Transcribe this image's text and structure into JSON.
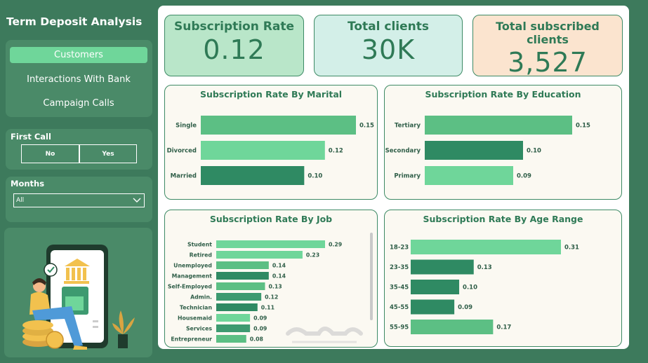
{
  "app": {
    "title": "Term Deposit Analysis"
  },
  "nav": {
    "items": [
      {
        "label": "Customers",
        "active": true
      },
      {
        "label": "Interactions With Bank",
        "active": false
      },
      {
        "label": "Campaign Calls",
        "active": false
      }
    ]
  },
  "filters": {
    "first_call": {
      "label": "First Call",
      "options": [
        "No",
        "Yes"
      ]
    },
    "months": {
      "label": "Months",
      "value": "All"
    }
  },
  "kpis": [
    {
      "title": "Subscription Rate",
      "value": "0.12"
    },
    {
      "title": "Total clients",
      "value": "30K"
    },
    {
      "title": "Total subscribed clients",
      "value": "3,527"
    }
  ],
  "chart_data": [
    {
      "type": "bar",
      "orientation": "horizontal",
      "title": "Subscription Rate By Marital",
      "categories": [
        "Single",
        "Divorced",
        "Married"
      ],
      "values": [
        0.15,
        0.12,
        0.1
      ],
      "labels": [
        "0.15",
        "0.12",
        "0.10"
      ],
      "colors": [
        "#5cbf84",
        "#6fd69a",
        "#2f8a63"
      ]
    },
    {
      "type": "bar",
      "orientation": "horizontal",
      "title": "Subscription Rate By Education",
      "categories": [
        "Tertiary",
        "Secondary",
        "Primary"
      ],
      "values": [
        0.15,
        0.1,
        0.09
      ],
      "labels": [
        "0.15",
        "0.10",
        "0.09"
      ],
      "colors": [
        "#5cbf84",
        "#2f8a63",
        "#6fd69a"
      ]
    },
    {
      "type": "bar",
      "orientation": "horizontal",
      "title": "Subscription Rate By Job",
      "categories": [
        "Student",
        "Retired",
        "Unemployed",
        "Management",
        "Self-Employed",
        "Admin.",
        "Technician",
        "Housemaid",
        "Services",
        "Entrepreneur"
      ],
      "values": [
        0.29,
        0.23,
        0.14,
        0.14,
        0.13,
        0.12,
        0.11,
        0.09,
        0.09,
        0.08
      ],
      "labels": [
        "0.29",
        "0.23",
        "0.14",
        "0.14",
        "0.13",
        "0.12",
        "0.11",
        "0.09",
        "0.09",
        "0.08"
      ],
      "colors": [
        "#6fd69a",
        "#6fd69a",
        "#5cbf84",
        "#2f8a63",
        "#5cbf84",
        "#3d9a70",
        "#2f8a63",
        "#6fd69a",
        "#3d9a70",
        "#5cbf84"
      ]
    },
    {
      "type": "bar",
      "orientation": "horizontal",
      "title": "Subscription Rate By Age Range",
      "categories": [
        "18-23",
        "23-35",
        "35-45",
        "45-55",
        "55-95"
      ],
      "values": [
        0.31,
        0.13,
        0.1,
        0.09,
        0.17
      ],
      "labels": [
        "0.31",
        "0.13",
        "0.10",
        "0.09",
        "0.17"
      ],
      "colors": [
        "#6fd69a",
        "#2f8a63",
        "#2f8a63",
        "#2f8a63",
        "#5cbf84"
      ]
    }
  ]
}
